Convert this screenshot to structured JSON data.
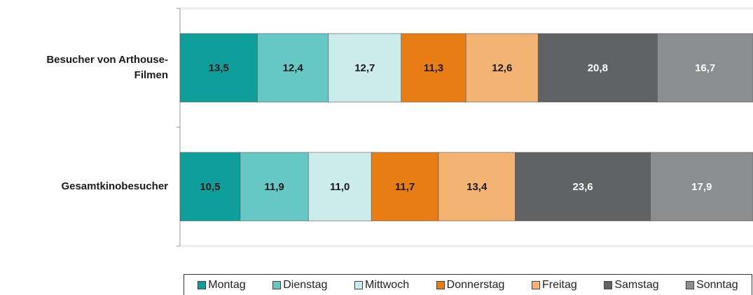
{
  "chart_data": {
    "type": "stacked-bar-horizontal",
    "categories": [
      "Besucher von Arthouse-Filmen",
      "Gesamtkinobesucher"
    ],
    "xlim": [
      0,
      100
    ],
    "series": [
      {
        "name": "Montag",
        "color": "#0e9f9b",
        "values": [
          13.5,
          10.5
        ],
        "value_labels": [
          "13,5",
          "10,5"
        ]
      },
      {
        "name": "Dienstag",
        "color": "#66c8c5",
        "values": [
          12.4,
          11.9
        ],
        "value_labels": [
          "12,4",
          "11,9"
        ]
      },
      {
        "name": "Mittwoch",
        "color": "#ccecec",
        "values": [
          12.7,
          11.0
        ],
        "value_labels": [
          "12,7",
          "11,0"
        ]
      },
      {
        "name": "Donnerstag",
        "color": "#e87d16",
        "values": [
          11.3,
          11.7
        ],
        "value_labels": [
          "11,3",
          "11,7"
        ]
      },
      {
        "name": "Freitag",
        "color": "#f3b373",
        "values": [
          12.6,
          13.4
        ],
        "value_labels": [
          "12,6",
          "13,4"
        ]
      },
      {
        "name": "Samstag",
        "color": "#606263",
        "values": [
          20.8,
          23.6
        ],
        "value_labels": [
          "20,8",
          "23,6"
        ]
      },
      {
        "name": "Sonntag",
        "color": "#8b8d8e",
        "values": [
          16.7,
          17.9
        ],
        "value_labels": [
          "16,7",
          "17,9"
        ]
      }
    ]
  }
}
